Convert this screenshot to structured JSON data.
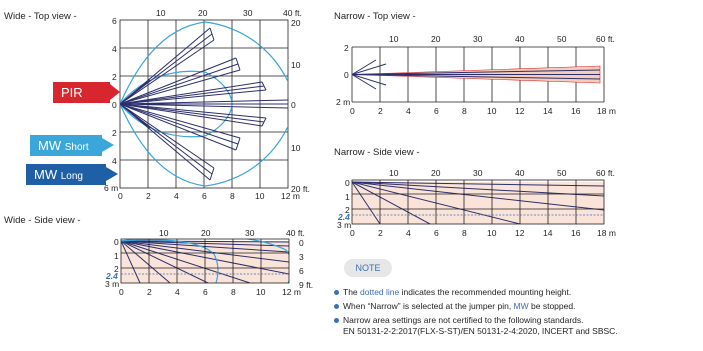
{
  "wide_top": {
    "title": "Wide - Top view -",
    "ft_labels": [
      "10",
      "20",
      "30",
      "40 ft."
    ],
    "m_labels": [
      "0",
      "2",
      "4",
      "6",
      "8",
      "10",
      "12 m"
    ],
    "left_labels": [
      "6",
      "4",
      "2",
      "0",
      "2",
      "4",
      "6 m"
    ],
    "right_ft_labels": [
      "20",
      "10",
      "0",
      "10",
      "20 ft."
    ]
  },
  "wide_side": {
    "title": "Wide - Side view -",
    "ft_labels": [
      "10",
      "20",
      "30",
      "40 ft."
    ],
    "m_labels": [
      "0",
      "2",
      "4",
      "6",
      "8",
      "10",
      "12 m"
    ],
    "left_labels": [
      "0",
      "1",
      "2",
      "2.4",
      "3 m"
    ],
    "right_ft_labels": [
      "0",
      "3",
      "6",
      "9 ft."
    ]
  },
  "narrow_top": {
    "title": "Narrow - Top view -",
    "ft_labels": [
      "10",
      "20",
      "30",
      "40",
      "50",
      "60 ft."
    ],
    "m_labels": [
      "0",
      "2",
      "4",
      "6",
      "8",
      "10",
      "12",
      "14",
      "16",
      "18 m"
    ],
    "left_labels": [
      "2",
      "0",
      "2 m"
    ]
  },
  "narrow_side": {
    "title": "Narrow - Side view -",
    "ft_labels": [
      "10",
      "20",
      "30",
      "40",
      "50",
      "60 ft."
    ],
    "m_labels": [
      "0",
      "2",
      "4",
      "6",
      "8",
      "10",
      "12",
      "14",
      "16",
      "18 m"
    ],
    "left_labels": [
      "0",
      "1",
      "2",
      "2.4",
      "3 m"
    ]
  },
  "legend": {
    "pir": "PIR",
    "mw_short_main": "MW",
    "mw_short_sub": "Short",
    "mw_long_main": "MW",
    "mw_long_sub": "Long"
  },
  "note": {
    "tag": "NOTE",
    "item1_a": "The ",
    "item1_b": "dotted line",
    "item1_c": " indicates the recommended mounting height.",
    "item2_a": "When “Narrow” is selected at the jumper pin, ",
    "item2_b": "MW",
    "item2_c": " be stopped.",
    "item3_line1": "Narrow area settings are not certified to the following standards.",
    "item3_line2": "EN 50131-2-2:2017(FLX-S-ST)/EN 50131-2-4:2020, INCERT and SBSC."
  },
  "colors": {
    "pir_red": "#d7262e",
    "mw_short": "#3aa6d9",
    "mw_long": "#1f5fa6",
    "beam": "#2c2f6d",
    "zone_fill": "#f6cdb9"
  }
}
